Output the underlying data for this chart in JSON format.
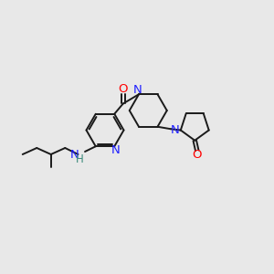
{
  "bg_color": "#e8e8e8",
  "bond_color": "#1a1a1a",
  "N_color": "#2020ff",
  "O_color": "#ff0000",
  "H_color": "#3a8a7a",
  "line_width": 1.4,
  "font_size": 9.5,
  "fig_size": [
    3.0,
    3.0
  ],
  "dpi": 100,
  "xlim": [
    0,
    12
  ],
  "ylim": [
    0,
    12
  ]
}
